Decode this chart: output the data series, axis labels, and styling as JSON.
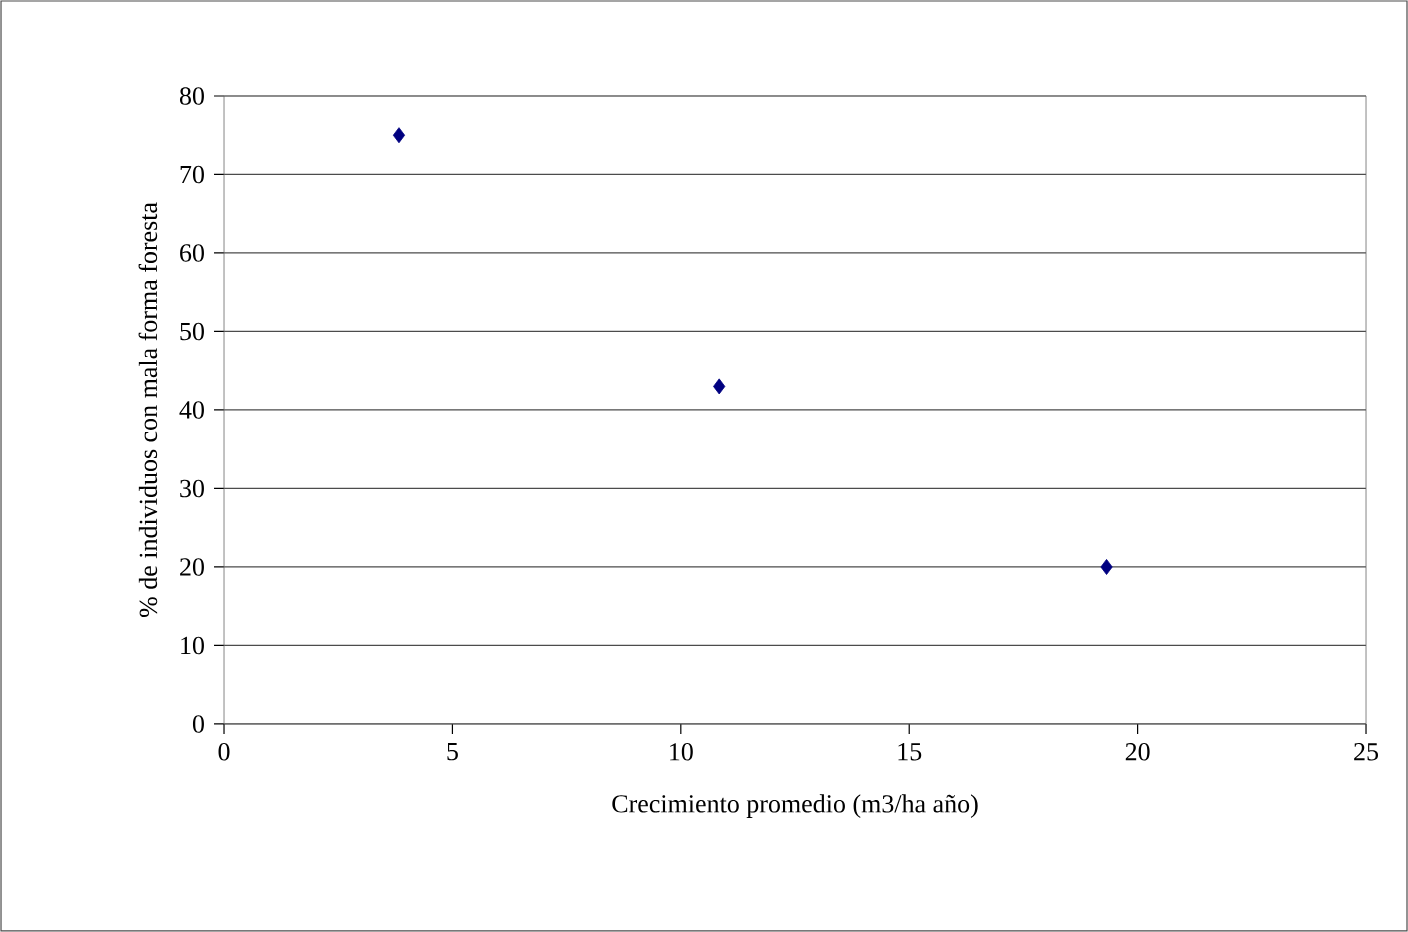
{
  "chart_data": {
    "type": "scatter",
    "xlabel": "Crecimiento promedio (m3/ha año)",
    "ylabel": "% de individuos con mala forma foresta",
    "x": [
      3.83,
      10.84,
      19.32
    ],
    "values": [
      75,
      43,
      20
    ],
    "color": "#000080",
    "marker": "diamond",
    "xlim": [
      0,
      25
    ],
    "xticks": [
      0,
      5,
      10,
      15,
      20,
      25
    ],
    "ylim": [
      0,
      80
    ],
    "yticks": [
      0,
      10,
      20,
      30,
      40,
      50,
      60,
      70,
      80
    ],
    "grid": "y"
  }
}
